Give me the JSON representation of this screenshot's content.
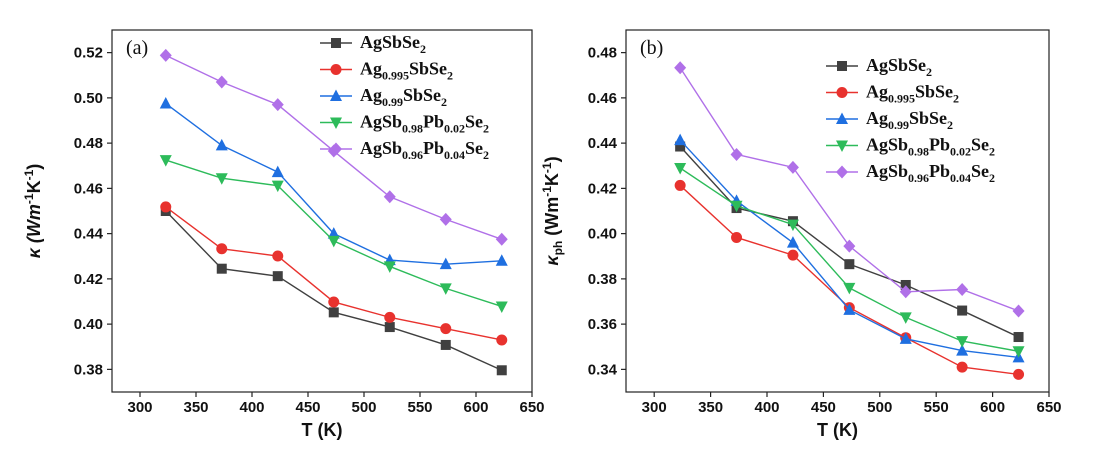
{
  "chart_data": [
    {
      "type": "line",
      "panel_label": "(a)",
      "xlabel": "T (K)",
      "ylabel": {
        "main": "κ (Wm",
        "sup1": "-1",
        "mid": "K",
        "sup2": "-1",
        "end": ")"
      },
      "xlim": [
        275,
        650
      ],
      "ylim": [
        0.37,
        0.53
      ],
      "xticks": [
        300,
        350,
        400,
        450,
        500,
        550,
        600,
        650
      ],
      "yticks": [
        0.38,
        0.4,
        0.42,
        0.44,
        0.46,
        0.48,
        0.5,
        0.52
      ],
      "x": [
        323,
        373,
        423,
        473,
        523,
        573,
        623
      ],
      "legend_position": "top-right",
      "series": [
        {
          "name": "AgSbSe2",
          "name_parts": [
            [
              "AgSbSe",
              ""
            ],
            [
              "2",
              "sub"
            ]
          ],
          "color": "#404040",
          "marker": "square",
          "values": [
            0.45,
            0.4245,
            0.4212,
            0.4052,
            0.3987,
            0.3908,
            0.3796
          ]
        },
        {
          "name": "Ag0.995SbSe2",
          "name_parts": [
            [
              "Ag",
              ""
            ],
            [
              "0.995",
              "sub"
            ],
            [
              "SbSe",
              ""
            ],
            [
              "2",
              "sub"
            ]
          ],
          "color": "#e8322e",
          "marker": "circle",
          "values": [
            0.4518,
            0.4333,
            0.4301,
            0.4098,
            0.403,
            0.398,
            0.393
          ]
        },
        {
          "name": "Ag0.99SbSe2",
          "name_parts": [
            [
              "Ag",
              ""
            ],
            [
              "0.99",
              "sub"
            ],
            [
              "SbSe",
              ""
            ],
            [
              "2",
              "sub"
            ]
          ],
          "color": "#1f6fe0",
          "marker": "triangle-up",
          "values": [
            0.4975,
            0.479,
            0.4672,
            0.44,
            0.4283,
            0.4265,
            0.428
          ]
        },
        {
          "name": "AgSb0.98Pb0.02Se2",
          "name_parts": [
            [
              "AgSb",
              ""
            ],
            [
              "0.98",
              "sub"
            ],
            [
              "Pb",
              ""
            ],
            [
              "0.02",
              "sub"
            ],
            [
              "Se",
              ""
            ],
            [
              "2",
              "sub"
            ]
          ],
          "color": "#2dbb5a",
          "marker": "triangle-down",
          "values": [
            0.4725,
            0.4645,
            0.4612,
            0.4368,
            0.4255,
            0.4158,
            0.4078
          ]
        },
        {
          "name": "AgSb0.96Pb0.04Se2",
          "name_parts": [
            [
              "AgSb",
              ""
            ],
            [
              "0.96",
              "sub"
            ],
            [
              "Pb",
              ""
            ],
            [
              "0.04",
              "sub"
            ],
            [
              "Se",
              ""
            ],
            [
              "2",
              "sub"
            ]
          ],
          "color": "#b070e8",
          "marker": "diamond",
          "values": [
            0.5188,
            0.507,
            0.497,
            0.4765,
            0.4563,
            0.4463,
            0.4375
          ]
        }
      ]
    },
    {
      "type": "line",
      "panel_label": "(b)",
      "xlabel": "T (K)",
      "ylabel": {
        "main": "κ",
        "subp": "ph",
        "mid": " (Wm",
        "sup1": "-1",
        "mid2": "K",
        "sup2": "-1",
        "end": ")"
      },
      "xlim": [
        275,
        650
      ],
      "ylim": [
        0.33,
        0.49
      ],
      "xticks": [
        300,
        350,
        400,
        450,
        500,
        550,
        600,
        650
      ],
      "yticks": [
        0.34,
        0.36,
        0.38,
        0.4,
        0.42,
        0.44,
        0.46,
        0.48
      ],
      "x": [
        323,
        373,
        423,
        473,
        523,
        573,
        623
      ],
      "legend_position": "top-right",
      "series": [
        {
          "name": "AgSbSe2",
          "name_parts": [
            [
              "AgSbSe",
              ""
            ],
            [
              "2",
              "sub"
            ]
          ],
          "color": "#404040",
          "marker": "square",
          "values": [
            0.4385,
            0.4113,
            0.4055,
            0.3865,
            0.3773,
            0.366,
            0.3543
          ]
        },
        {
          "name": "Ag0.995SbSe2",
          "name_parts": [
            [
              "Ag",
              ""
            ],
            [
              "0.995",
              "sub"
            ],
            [
              "SbSe",
              ""
            ],
            [
              "2",
              "sub"
            ]
          ],
          "color": "#e8322e",
          "marker": "circle",
          "values": [
            0.4213,
            0.3983,
            0.3905,
            0.3673,
            0.354,
            0.341,
            0.3378
          ]
        },
        {
          "name": "Ag0.99SbSe2",
          "name_parts": [
            [
              "Ag",
              ""
            ],
            [
              "0.99",
              "sub"
            ],
            [
              "SbSe",
              ""
            ],
            [
              "2",
              "sub"
            ]
          ],
          "color": "#1f6fe0",
          "marker": "triangle-up",
          "values": [
            0.4413,
            0.4145,
            0.396,
            0.3663,
            0.3535,
            0.3483,
            0.3453
          ]
        },
        {
          "name": "AgSb0.98Pb0.02Se2",
          "name_parts": [
            [
              "AgSb",
              ""
            ],
            [
              "0.98",
              "sub"
            ],
            [
              "Pb",
              ""
            ],
            [
              "0.02",
              "sub"
            ],
            [
              "Se",
              ""
            ],
            [
              "2",
              "sub"
            ]
          ],
          "color": "#2dbb5a",
          "marker": "triangle-down",
          "values": [
            0.429,
            0.4123,
            0.404,
            0.376,
            0.363,
            0.3525,
            0.348
          ]
        },
        {
          "name": "AgSb0.96Pb0.04Se2",
          "name_parts": [
            [
              "AgSb",
              ""
            ],
            [
              "0.96",
              "sub"
            ],
            [
              "Pb",
              ""
            ],
            [
              "0.04",
              "sub"
            ],
            [
              "Se",
              ""
            ],
            [
              "2",
              "sub"
            ]
          ],
          "color": "#b070e8",
          "marker": "diamond",
          "values": [
            0.4733,
            0.435,
            0.4293,
            0.3945,
            0.3743,
            0.3753,
            0.3658
          ]
        }
      ]
    }
  ]
}
